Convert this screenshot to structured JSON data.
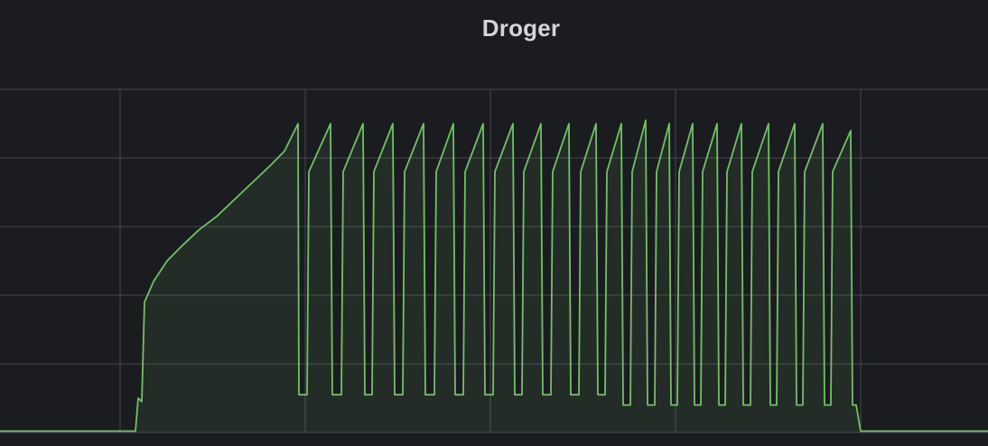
{
  "panel": {
    "title": "Droger"
  },
  "chart_data": {
    "type": "area",
    "title": "Droger",
    "xlabel": "",
    "ylabel": "",
    "grid": true,
    "legend": "none",
    "xlim": [
      0,
      1094
    ],
    "ylim": [
      0,
      5
    ],
    "colors": {
      "background": "#1b1c20",
      "grid": "#464951",
      "line": "#73bf69",
      "fill": "#73bf69"
    },
    "series": [
      {
        "values": [
          [
            0,
            0.02
          ],
          [
            150,
            0.02
          ],
          [
            153,
            0.5
          ],
          [
            157,
            0.45
          ],
          [
            160,
            1.9
          ],
          [
            170,
            2.2
          ],
          [
            185,
            2.5
          ],
          [
            200,
            2.7
          ],
          [
            220,
            2.95
          ],
          [
            240,
            3.15
          ],
          [
            260,
            3.4
          ],
          [
            280,
            3.65
          ],
          [
            300,
            3.9
          ],
          [
            315,
            4.1
          ],
          [
            330,
            4.5
          ],
          [
            331,
            0.55
          ],
          [
            340,
            0.55
          ],
          [
            342,
            3.8
          ],
          [
            366,
            4.5
          ],
          [
            368,
            0.55
          ],
          [
            378,
            0.55
          ],
          [
            380,
            3.8
          ],
          [
            402,
            4.5
          ],
          [
            404,
            0.55
          ],
          [
            412,
            0.55
          ],
          [
            414,
            3.8
          ],
          [
            435,
            4.5
          ],
          [
            437,
            0.55
          ],
          [
            446,
            0.55
          ],
          [
            448,
            3.8
          ],
          [
            469,
            4.5
          ],
          [
            471,
            0.55
          ],
          [
            481,
            0.55
          ],
          [
            483,
            3.8
          ],
          [
            502,
            4.5
          ],
          [
            504,
            0.55
          ],
          [
            513,
            0.55
          ],
          [
            515,
            3.8
          ],
          [
            535,
            4.5
          ],
          [
            537,
            0.55
          ],
          [
            546,
            0.55
          ],
          [
            548,
            3.8
          ],
          [
            568,
            4.5
          ],
          [
            570,
            0.55
          ],
          [
            578,
            0.55
          ],
          [
            580,
            3.8
          ],
          [
            599,
            4.5
          ],
          [
            601,
            0.55
          ],
          [
            610,
            0.55
          ],
          [
            612,
            3.8
          ],
          [
            630,
            4.5
          ],
          [
            632,
            0.55
          ],
          [
            641,
            0.55
          ],
          [
            643,
            3.8
          ],
          [
            660,
            4.5
          ],
          [
            662,
            0.55
          ],
          [
            670,
            0.55
          ],
          [
            672,
            3.8
          ],
          [
            688,
            4.5
          ],
          [
            690,
            0.4
          ],
          [
            698,
            0.4
          ],
          [
            700,
            3.8
          ],
          [
            715,
            4.55
          ],
          [
            717,
            0.4
          ],
          [
            725,
            0.4
          ],
          [
            727,
            3.8
          ],
          [
            741,
            4.5
          ],
          [
            743,
            0.4
          ],
          [
            750,
            0.4
          ],
          [
            752,
            3.8
          ],
          [
            767,
            4.5
          ],
          [
            769,
            0.4
          ],
          [
            776,
            0.4
          ],
          [
            778,
            3.8
          ],
          [
            794,
            4.5
          ],
          [
            796,
            0.4
          ],
          [
            803,
            0.4
          ],
          [
            805,
            3.8
          ],
          [
            821,
            4.5
          ],
          [
            823,
            0.4
          ],
          [
            831,
            0.4
          ],
          [
            833,
            3.8
          ],
          [
            851,
            4.5
          ],
          [
            853,
            0.4
          ],
          [
            860,
            0.4
          ],
          [
            862,
            3.8
          ],
          [
            880,
            4.5
          ],
          [
            882,
            0.4
          ],
          [
            889,
            0.4
          ],
          [
            891,
            3.8
          ],
          [
            911,
            4.5
          ],
          [
            913,
            0.4
          ],
          [
            920,
            0.4
          ],
          [
            922,
            3.8
          ],
          [
            942,
            4.4
          ],
          [
            944,
            0.4
          ],
          [
            948,
            0.4
          ],
          [
            953,
            0.02
          ],
          [
            1094,
            0.02
          ]
        ]
      }
    ]
  }
}
